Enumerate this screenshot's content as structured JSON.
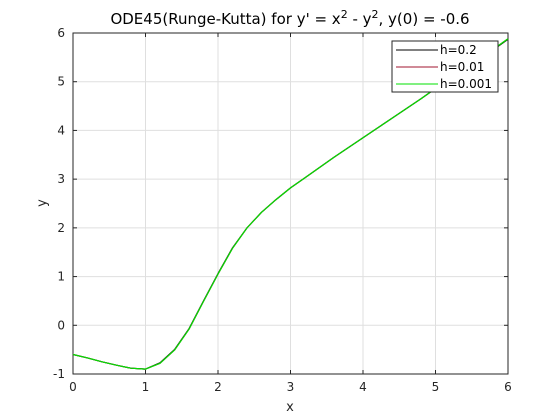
{
  "chart_data": {
    "type": "line",
    "title": {
      "prefix": "ODE45(Runge-Kutta) for y' = x",
      "sup1": "2",
      "mid": " - y",
      "sup2": "2",
      "suffix": ", y(0) = -0.6"
    },
    "xlabel": "x",
    "ylabel": "y",
    "xlim": [
      0,
      6
    ],
    "ylim": [
      -1,
      6
    ],
    "xticks": [
      "0",
      "1",
      "2",
      "3",
      "4",
      "5",
      "6"
    ],
    "yticks": [
      "-1",
      "0",
      "1",
      "2",
      "3",
      "4",
      "5",
      "6"
    ],
    "grid": true,
    "legend_position": "top-right",
    "series": [
      {
        "name": "h=0.2",
        "color": "#000000",
        "x": [
          0,
          0.2,
          0.4,
          0.6,
          0.8,
          1.0,
          1.2,
          1.4,
          1.6,
          1.8,
          2.0,
          2.2,
          2.4,
          2.6,
          2.8,
          3.0,
          3.2,
          3.4,
          3.6,
          3.8,
          4.0,
          4.2,
          4.4,
          4.6,
          4.8,
          5.0,
          5.2,
          5.4,
          5.6,
          5.8,
          6.0
        ],
        "y": [
          -0.6,
          -0.67,
          -0.75,
          -0.82,
          -0.88,
          -0.9,
          -0.77,
          -0.5,
          -0.07,
          0.5,
          1.06,
          1.59,
          2.0,
          2.32,
          2.58,
          2.82,
          3.03,
          3.24,
          3.45,
          3.65,
          3.85,
          4.05,
          4.25,
          4.45,
          4.65,
          4.86,
          5.06,
          5.26,
          5.47,
          5.66,
          5.87
        ]
      },
      {
        "name": "h=0.01",
        "color": "#a2142f",
        "x": [
          0,
          0.2,
          0.4,
          0.6,
          0.8,
          1.0,
          1.2,
          1.4,
          1.6,
          1.8,
          2.0,
          2.2,
          2.4,
          2.6,
          2.8,
          3.0,
          3.2,
          3.4,
          3.6,
          3.8,
          4.0,
          4.2,
          4.4,
          4.6,
          4.8,
          5.0,
          5.2,
          5.4,
          5.6,
          5.8,
          6.0
        ],
        "y": [
          -0.6,
          -0.67,
          -0.75,
          -0.82,
          -0.88,
          -0.9,
          -0.78,
          -0.51,
          -0.08,
          0.49,
          1.05,
          1.58,
          2.0,
          2.32,
          2.58,
          2.82,
          3.03,
          3.24,
          3.45,
          3.65,
          3.85,
          4.05,
          4.25,
          4.45,
          4.65,
          4.86,
          5.06,
          5.26,
          5.47,
          5.67,
          5.88
        ]
      },
      {
        "name": "h=0.001",
        "color": "#00e000",
        "x": [
          0,
          0.2,
          0.4,
          0.6,
          0.8,
          1.0,
          1.2,
          1.4,
          1.6,
          1.8,
          2.0,
          2.2,
          2.4,
          2.6,
          2.8,
          3.0,
          3.2,
          3.4,
          3.6,
          3.8,
          4.0,
          4.2,
          4.4,
          4.6,
          4.8,
          5.0,
          5.2,
          5.4,
          5.6,
          5.8,
          6.0
        ],
        "y": [
          -0.6,
          -0.67,
          -0.75,
          -0.82,
          -0.88,
          -0.9,
          -0.78,
          -0.51,
          -0.08,
          0.49,
          1.05,
          1.58,
          2.0,
          2.32,
          2.58,
          2.82,
          3.03,
          3.24,
          3.45,
          3.65,
          3.85,
          4.05,
          4.25,
          4.45,
          4.65,
          4.86,
          5.06,
          5.26,
          5.47,
          5.67,
          5.88
        ]
      }
    ]
  }
}
